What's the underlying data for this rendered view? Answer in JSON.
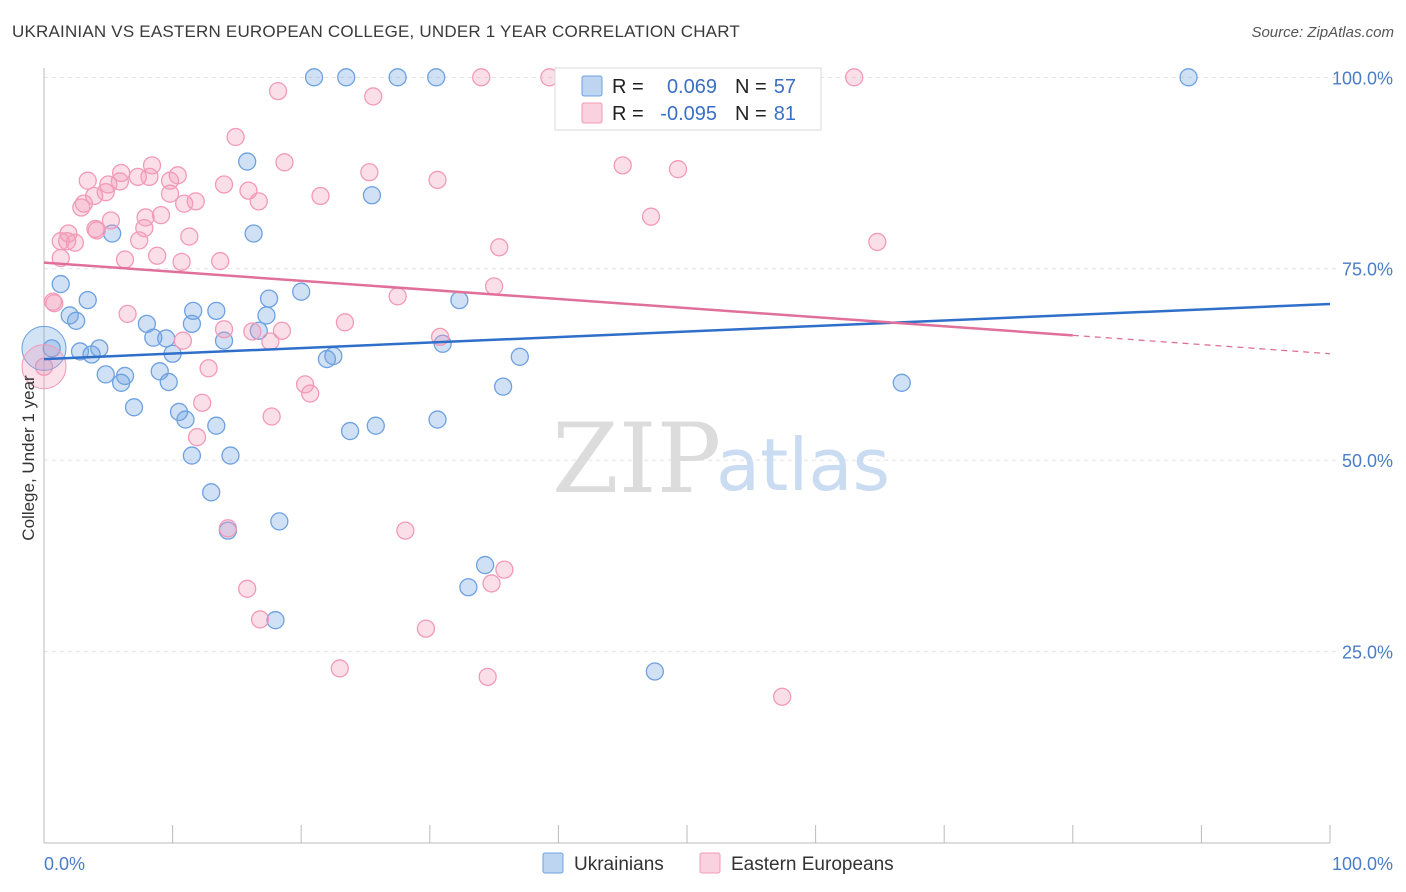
{
  "header": {
    "title": "UKRAINIAN VS EASTERN EUROPEAN COLLEGE, UNDER 1 YEAR CORRELATION CHART",
    "source": "Source: ZipAtlas.com"
  },
  "watermark": {
    "zip": "ZIP",
    "atlas": "atlas"
  },
  "chart_data": {
    "type": "scatter",
    "title": "UKRAINIAN VS EASTERN EUROPEAN COLLEGE, UNDER 1 YEAR CORRELATION CHART",
    "xlabel": "",
    "ylabel": "College, Under 1 year",
    "xlim": [
      0,
      100
    ],
    "ylim": [
      0,
      102
    ],
    "x_tick_labels": [
      "0.0%",
      "100.0%"
    ],
    "y_ticks": [
      {
        "value": 25,
        "label": "25.0%"
      },
      {
        "value": 50,
        "label": "50.0%"
      },
      {
        "value": 75,
        "label": "75.0%"
      },
      {
        "value": 100,
        "label": "100.0%"
      }
    ],
    "grid": true,
    "legend_position": "top-center",
    "stats": [
      {
        "r_label": "R =",
        "r_value": "0.069",
        "n_label": "N =",
        "n_value": "57"
      },
      {
        "r_label": "R =",
        "r_value": "-0.095",
        "n_label": "N =",
        "n_value": "81"
      }
    ],
    "series": [
      {
        "name": "Ukrainians",
        "color": "#6ea1e0",
        "line_color": "#2f6fc9",
        "trend": {
          "x0": 0,
          "y0": 63.2,
          "x1": 100,
          "y1": 70.4
        },
        "points": [
          [
            21,
            100
          ],
          [
            23.5,
            100
          ],
          [
            27.5,
            100
          ],
          [
            30.5,
            100
          ],
          [
            89,
            100
          ],
          [
            15.8,
            89
          ],
          [
            25.5,
            84.6
          ],
          [
            5.3,
            79.6
          ],
          [
            16.3,
            79.6
          ],
          [
            1.3,
            73
          ],
          [
            3.4,
            70.9
          ],
          [
            17.5,
            71.1
          ],
          [
            20,
            72
          ],
          [
            32.3,
            70.9
          ],
          [
            2,
            68.9
          ],
          [
            2.5,
            68.2
          ],
          [
            11.6,
            69.5
          ],
          [
            13.4,
            69.5
          ],
          [
            17.3,
            68.9
          ],
          [
            8,
            67.8
          ],
          [
            11.5,
            67.8
          ],
          [
            16.7,
            66.9
          ],
          [
            0.6,
            64.6
          ],
          [
            2.8,
            64.2
          ],
          [
            3.7,
            63.8
          ],
          [
            4.3,
            64.6
          ],
          [
            8.5,
            66
          ],
          [
            9.5,
            65.9
          ],
          [
            14,
            65.6
          ],
          [
            10,
            63.9
          ],
          [
            22,
            63.2
          ],
          [
            22.5,
            63.6
          ],
          [
            31,
            65.2
          ],
          [
            37,
            63.5
          ],
          [
            4.8,
            61.2
          ],
          [
            6,
            60.1
          ],
          [
            6.3,
            61
          ],
          [
            9,
            61.6
          ],
          [
            9.7,
            60.2
          ],
          [
            66.7,
            60.1
          ],
          [
            35.7,
            59.6
          ],
          [
            10.5,
            56.3
          ],
          [
            11,
            55.3
          ],
          [
            13.4,
            54.5
          ],
          [
            7,
            56.9
          ],
          [
            23.8,
            53.8
          ],
          [
            25.8,
            54.5
          ],
          [
            30.6,
            55.3
          ],
          [
            11.5,
            50.6
          ],
          [
            14.5,
            50.6
          ],
          [
            13,
            45.8
          ],
          [
            14.3,
            40.8
          ],
          [
            18.3,
            42
          ],
          [
            34.3,
            36.3
          ],
          [
            33,
            33.4
          ],
          [
            18,
            29.1
          ],
          [
            47.5,
            22.4
          ]
        ]
      },
      {
        "name": "Eastern Europeans",
        "color": "#f29ab8",
        "line_color": "#e0709a",
        "trend": {
          "x0": 0,
          "y0": 75.8,
          "x1": 80,
          "y1": 66.3,
          "dash_x1": 100,
          "dash_y1": 63.9
        },
        "points": [
          [
            34,
            100
          ],
          [
            39.3,
            100
          ],
          [
            50,
            100
          ],
          [
            63,
            100
          ],
          [
            18.2,
            98.2
          ],
          [
            25.6,
            97.5
          ],
          [
            14.9,
            92.2
          ],
          [
            18.7,
            88.9
          ],
          [
            8.4,
            88.5
          ],
          [
            45,
            88.5
          ],
          [
            49.3,
            88
          ],
          [
            6,
            87.5
          ],
          [
            7.3,
            87
          ],
          [
            8.2,
            87
          ],
          [
            10.4,
            87.2
          ],
          [
            25.3,
            87.6
          ],
          [
            3.4,
            86.5
          ],
          [
            5,
            86
          ],
          [
            9.8,
            86.5
          ],
          [
            30.6,
            86.6
          ],
          [
            14,
            86
          ],
          [
            4.8,
            85
          ],
          [
            3.9,
            84.5
          ],
          [
            15.9,
            85.2
          ],
          [
            21.5,
            84.5
          ],
          [
            3.1,
            83.5
          ],
          [
            10.9,
            83.5
          ],
          [
            11.8,
            83.8
          ],
          [
            16.7,
            83.8
          ],
          [
            2.9,
            83
          ],
          [
            5.2,
            81.3
          ],
          [
            7.9,
            81.7
          ],
          [
            9.1,
            82
          ],
          [
            47.2,
            81.8
          ],
          [
            7.8,
            80.3
          ],
          [
            4.1,
            80
          ],
          [
            1.9,
            79.6
          ],
          [
            11.3,
            79.2
          ],
          [
            1.8,
            78.6
          ],
          [
            1.3,
            78.6
          ],
          [
            2.4,
            78.4
          ],
          [
            7.4,
            78.7
          ],
          [
            35.4,
            77.8
          ],
          [
            64.8,
            78.5
          ],
          [
            1.3,
            76.4
          ],
          [
            6.3,
            76.2
          ],
          [
            8.8,
            76.7
          ],
          [
            10.7,
            75.9
          ],
          [
            13.7,
            76
          ],
          [
            35,
            72.7
          ],
          [
            27.5,
            71.4
          ],
          [
            0.8,
            70.5
          ],
          [
            6.5,
            69.1
          ],
          [
            23.4,
            68
          ],
          [
            14,
            67.1
          ],
          [
            16.2,
            66.8
          ],
          [
            18.5,
            66.9
          ],
          [
            10.8,
            65.6
          ],
          [
            17.6,
            65.5
          ],
          [
            30.8,
            66.1
          ],
          [
            0,
            62.2
          ],
          [
            12.8,
            62
          ],
          [
            20.3,
            59.9
          ],
          [
            20.7,
            58.7
          ],
          [
            12.3,
            57.5
          ],
          [
            17.7,
            55.7
          ],
          [
            11.9,
            53
          ],
          [
            14.3,
            41.1
          ],
          [
            28.1,
            40.8
          ],
          [
            35.8,
            35.7
          ],
          [
            34.8,
            33.9
          ],
          [
            15.8,
            33.2
          ],
          [
            16.8,
            29.2
          ],
          [
            29.7,
            28
          ],
          [
            23,
            22.8
          ],
          [
            34.5,
            21.7
          ],
          [
            57.4,
            19.1
          ],
          [
            0.7,
            70.7
          ],
          [
            4,
            80.2
          ],
          [
            5.9,
            86.4
          ],
          [
            9.8,
            84.8
          ]
        ]
      }
    ]
  }
}
